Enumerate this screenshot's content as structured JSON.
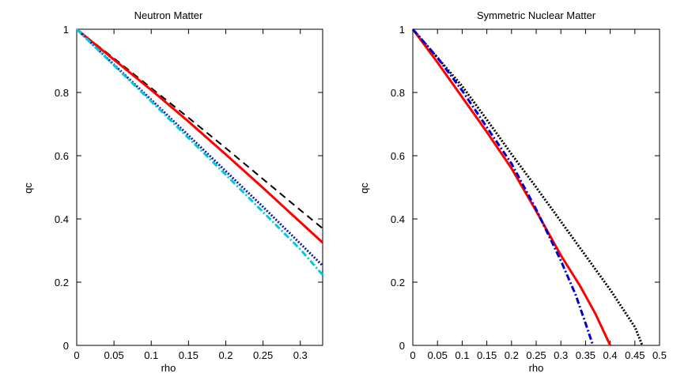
{
  "chart_data": [
    {
      "type": "line",
      "title": "Neutron Matter",
      "xlabel": "rho",
      "ylabel": "qc",
      "xlim": [
        0,
        0.33
      ],
      "ylim": [
        0,
        1
      ],
      "xticks": [
        "0",
        "0.05",
        "0.1",
        "0.15",
        "0.2",
        "0.25",
        "0.3"
      ],
      "yticks": [
        "0",
        "0.2",
        "0.4",
        "0.6",
        "0.8",
        "1"
      ],
      "grid": false,
      "series": [
        {
          "color": "#000000",
          "style": "dashed",
          "x": [
            0,
            0.05,
            0.1,
            0.15,
            0.2,
            0.25,
            0.3,
            0.33
          ],
          "y": [
            1.0,
            0.908,
            0.814,
            0.72,
            0.624,
            0.526,
            0.428,
            0.37
          ]
        },
        {
          "color": "#ff0000",
          "style": "solid",
          "x": [
            0,
            0.05,
            0.1,
            0.15,
            0.2,
            0.25,
            0.3,
            0.33
          ],
          "y": [
            1.0,
            0.904,
            0.808,
            0.708,
            0.604,
            0.498,
            0.39,
            0.325
          ]
        },
        {
          "color": "#1a1aa0",
          "style": "dotted",
          "x": [
            0,
            0.05,
            0.1,
            0.15,
            0.2,
            0.25,
            0.3,
            0.33
          ],
          "y": [
            1.0,
            0.888,
            0.777,
            0.664,
            0.551,
            0.438,
            0.322,
            0.252
          ]
        },
        {
          "color": "#00c8e0",
          "style": "dashdot",
          "x": [
            0,
            0.05,
            0.1,
            0.15,
            0.2,
            0.25,
            0.3,
            0.33
          ],
          "y": [
            1.0,
            0.886,
            0.772,
            0.656,
            0.54,
            0.422,
            0.304,
            0.223
          ]
        }
      ]
    },
    {
      "type": "line",
      "title": "Symmetric Nuclear Matter",
      "xlabel": "rho",
      "ylabel": "qc",
      "xlim": [
        0,
        0.5
      ],
      "ylim": [
        0,
        1
      ],
      "xticks": [
        "0",
        "0.05",
        "0.1",
        "0.15",
        "0.2",
        "0.25",
        "0.3",
        "0.35",
        "0.4",
        "0.45",
        "0.5"
      ],
      "yticks": [
        "0",
        "0.2",
        "0.4",
        "0.6",
        "0.8",
        "1"
      ],
      "grid": false,
      "series": [
        {
          "color": "#000000",
          "style": "dotted",
          "x": [
            0,
            0.05,
            0.1,
            0.15,
            0.2,
            0.25,
            0.3,
            0.35,
            0.4,
            0.45,
            0.465
          ],
          "y": [
            1.0,
            0.91,
            0.82,
            0.714,
            0.605,
            0.5,
            0.392,
            0.284,
            0.176,
            0.058,
            0.0
          ]
        },
        {
          "color": "#ff0000",
          "style": "solid",
          "x": [
            0,
            0.05,
            0.1,
            0.15,
            0.2,
            0.25,
            0.3,
            0.34,
            0.37,
            0.4
          ],
          "y": [
            1.0,
            0.895,
            0.785,
            0.675,
            0.56,
            0.425,
            0.285,
            0.185,
            0.1,
            0.0
          ]
        },
        {
          "color": "#0000cc",
          "style": "dashdot",
          "x": [
            0,
            0.05,
            0.1,
            0.15,
            0.2,
            0.25,
            0.3,
            0.33,
            0.35,
            0.365
          ],
          "y": [
            1.0,
            0.91,
            0.806,
            0.69,
            0.575,
            0.43,
            0.268,
            0.16,
            0.07,
            0.0
          ]
        }
      ]
    }
  ]
}
